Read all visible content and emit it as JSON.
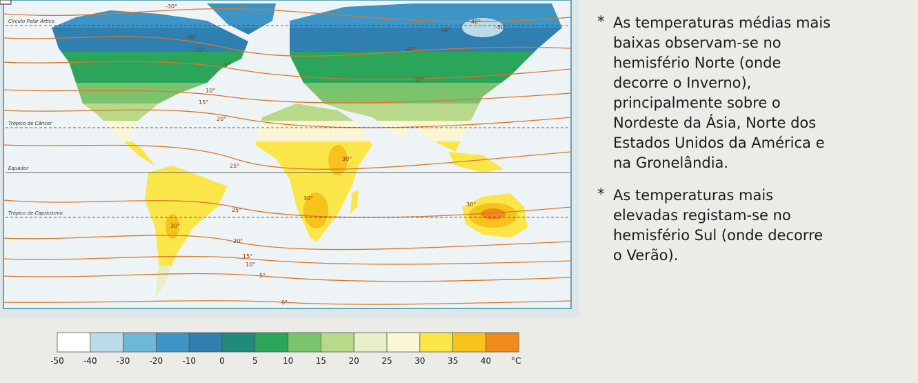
{
  "map": {
    "reference_lines": [
      {
        "label": "Círculo Polar Ártico",
        "kind": "dashed"
      },
      {
        "label": "Trópico de Câncer",
        "kind": "dashed"
      },
      {
        "label": "Equador",
        "kind": "solid"
      },
      {
        "label": "Trópico de Capricórnio",
        "kind": "dashed"
      }
    ],
    "isotherm_labels": [
      "-30°",
      "-20°",
      "-10°",
      "5°",
      "10°",
      "15°",
      "20°",
      "25°",
      "25°",
      "20°",
      "15°",
      "10°",
      "5°",
      "0°",
      "30°",
      "30°",
      "30°",
      "-30°",
      "-20°",
      "-10°",
      "-40°",
      "-50°",
      "30°"
    ]
  },
  "legend": {
    "colors": [
      "#ffffff",
      "#bcdbe8",
      "#6fb7d6",
      "#3d94c6",
      "#2f7fb0",
      "#1f8a7a",
      "#2aa55a",
      "#7cc36e",
      "#b8d98a",
      "#e6efc8",
      "#fbf7d6",
      "#fbe64a",
      "#f6c21c",
      "#f08a1c"
    ],
    "labels": [
      "-50",
      "-40",
      "-30",
      "-20",
      "-10",
      "0",
      "5",
      "10",
      "15",
      "20",
      "25",
      "30",
      "35",
      "40"
    ],
    "unit": "°C"
  },
  "text": {
    "bullets": [
      {
        "marker": "*",
        "lines": [
          "As temperaturas médias mais",
          "baixas observam-se no",
          "hemisfério Norte (onde",
          "decorre o Inverno),",
          "principalmente sobre o",
          "Nordeste da Ásia, Norte dos",
          "Estados Unidos da América e",
          "na Gronelândia."
        ]
      },
      {
        "marker": "*",
        "lines": [
          "As temperaturas mais",
          "elevadas registam-se no",
          "hemisfério Sul (onde decorre",
          "o Verão)."
        ]
      }
    ]
  }
}
